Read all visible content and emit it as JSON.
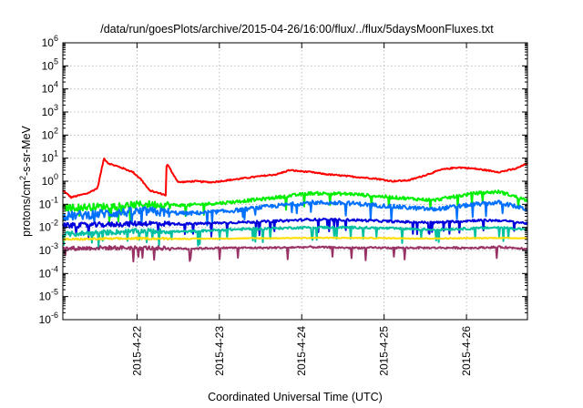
{
  "chart_data": {
    "type": "line",
    "title": "/data/run/goesPlots/archive/2015-04-26/16:00/flux/../flux/5daysMoonFluxes.txt",
    "xlabel": "Coordinated Universal Time (UTC)",
    "ylabel_parts": [
      "protons/cm",
      "2",
      "-s-sr-MeV"
    ],
    "x_range_days": [
      0,
      5.64
    ],
    "x_tick_positions_days": [
      0.9,
      1.9,
      2.9,
      3.9,
      4.9
    ],
    "x_tick_labels": [
      "2015-4-22",
      "2015-4-23",
      "2015-4-24",
      "2015-4-25",
      "2015-4-26"
    ],
    "y_scale": "log",
    "ylim": [
      1e-06,
      1000000.0
    ],
    "y_tick_exponents": [
      -6,
      -5,
      -4,
      -3,
      -2,
      -1,
      0,
      1,
      2,
      3,
      4,
      5,
      6
    ],
    "y_tick_base": "10",
    "grid": true,
    "series": [
      {
        "color": "#ff0000",
        "x": [
          0,
          0.1,
          0.3,
          0.42,
          0.5,
          0.55,
          0.7,
          0.85,
          0.95,
          1.05,
          1.25,
          1.26,
          1.4,
          1.6,
          1.8,
          2.0,
          2.3,
          2.6,
          2.75,
          3.0,
          3.2,
          3.5,
          3.8,
          4.0,
          4.2,
          4.35,
          4.6,
          4.8,
          5.0,
          5.3,
          5.5,
          5.64
        ],
        "y": [
          0.4,
          0.2,
          0.3,
          0.5,
          10,
          6,
          4,
          2.5,
          1.2,
          0.4,
          0.25,
          6,
          0.9,
          1.0,
          0.9,
          1.1,
          1.5,
          2.0,
          3.0,
          2.5,
          2.0,
          1.6,
          1.3,
          1.0,
          1.1,
          1.6,
          3.2,
          4.0,
          3.5,
          2.5,
          3.5,
          6.0
        ]
      },
      {
        "color": "#00ee00",
        "x": [
          0,
          0.5,
          1.0,
          1.5,
          2.0,
          2.5,
          3.0,
          3.5,
          4.0,
          4.5,
          5.0,
          5.3,
          5.64
        ],
        "y": [
          0.07,
          0.08,
          0.1,
          0.09,
          0.12,
          0.18,
          0.3,
          0.28,
          0.2,
          0.15,
          0.3,
          0.35,
          0.15
        ]
      },
      {
        "color": "#0070ff",
        "x": [
          0,
          0.5,
          1.0,
          1.5,
          2.0,
          2.5,
          3.0,
          3.5,
          4.0,
          4.5,
          5.0,
          5.3,
          5.64
        ],
        "y": [
          0.03,
          0.04,
          0.05,
          0.04,
          0.05,
          0.08,
          0.12,
          0.11,
          0.08,
          0.06,
          0.1,
          0.12,
          0.06
        ]
      },
      {
        "color": "#0000dd",
        "x": [
          0,
          0.5,
          1.0,
          1.5,
          2.0,
          2.5,
          3.0,
          3.5,
          4.0,
          4.5,
          5.0,
          5.3,
          5.64
        ],
        "y": [
          0.012,
          0.013,
          0.015,
          0.014,
          0.016,
          0.018,
          0.022,
          0.021,
          0.018,
          0.016,
          0.02,
          0.02,
          0.015
        ]
      },
      {
        "color": "#00c0a0",
        "x": [
          0,
          0.5,
          1.0,
          1.5,
          2.0,
          2.5,
          3.0,
          3.5,
          4.0,
          4.5,
          5.0,
          5.3,
          5.64
        ],
        "y": [
          0.005,
          0.006,
          0.007,
          0.0065,
          0.008,
          0.009,
          0.01,
          0.01,
          0.009,
          0.008,
          0.009,
          0.01,
          0.008
        ]
      },
      {
        "color": "#ffdd00",
        "x": [
          0,
          0.5,
          1.0,
          1.5,
          2.0,
          2.5,
          3.0,
          3.5,
          4.0,
          4.5,
          5.0,
          5.3,
          5.64
        ],
        "y": [
          0.003,
          0.0032,
          0.0033,
          0.0032,
          0.0033,
          0.0034,
          0.0035,
          0.0035,
          0.0034,
          0.0033,
          0.0034,
          0.0035,
          0.0034
        ]
      },
      {
        "color": "#993366",
        "x": [
          0,
          0.5,
          1.0,
          1.5,
          2.0,
          2.5,
          3.0,
          3.5,
          4.0,
          4.5,
          5.0,
          5.3,
          5.64
        ],
        "y": [
          0.0012,
          0.0013,
          0.0013,
          0.0012,
          0.0013,
          0.0013,
          0.0014,
          0.0013,
          0.0013,
          0.0013,
          0.0013,
          0.0014,
          0.0012
        ]
      }
    ]
  }
}
